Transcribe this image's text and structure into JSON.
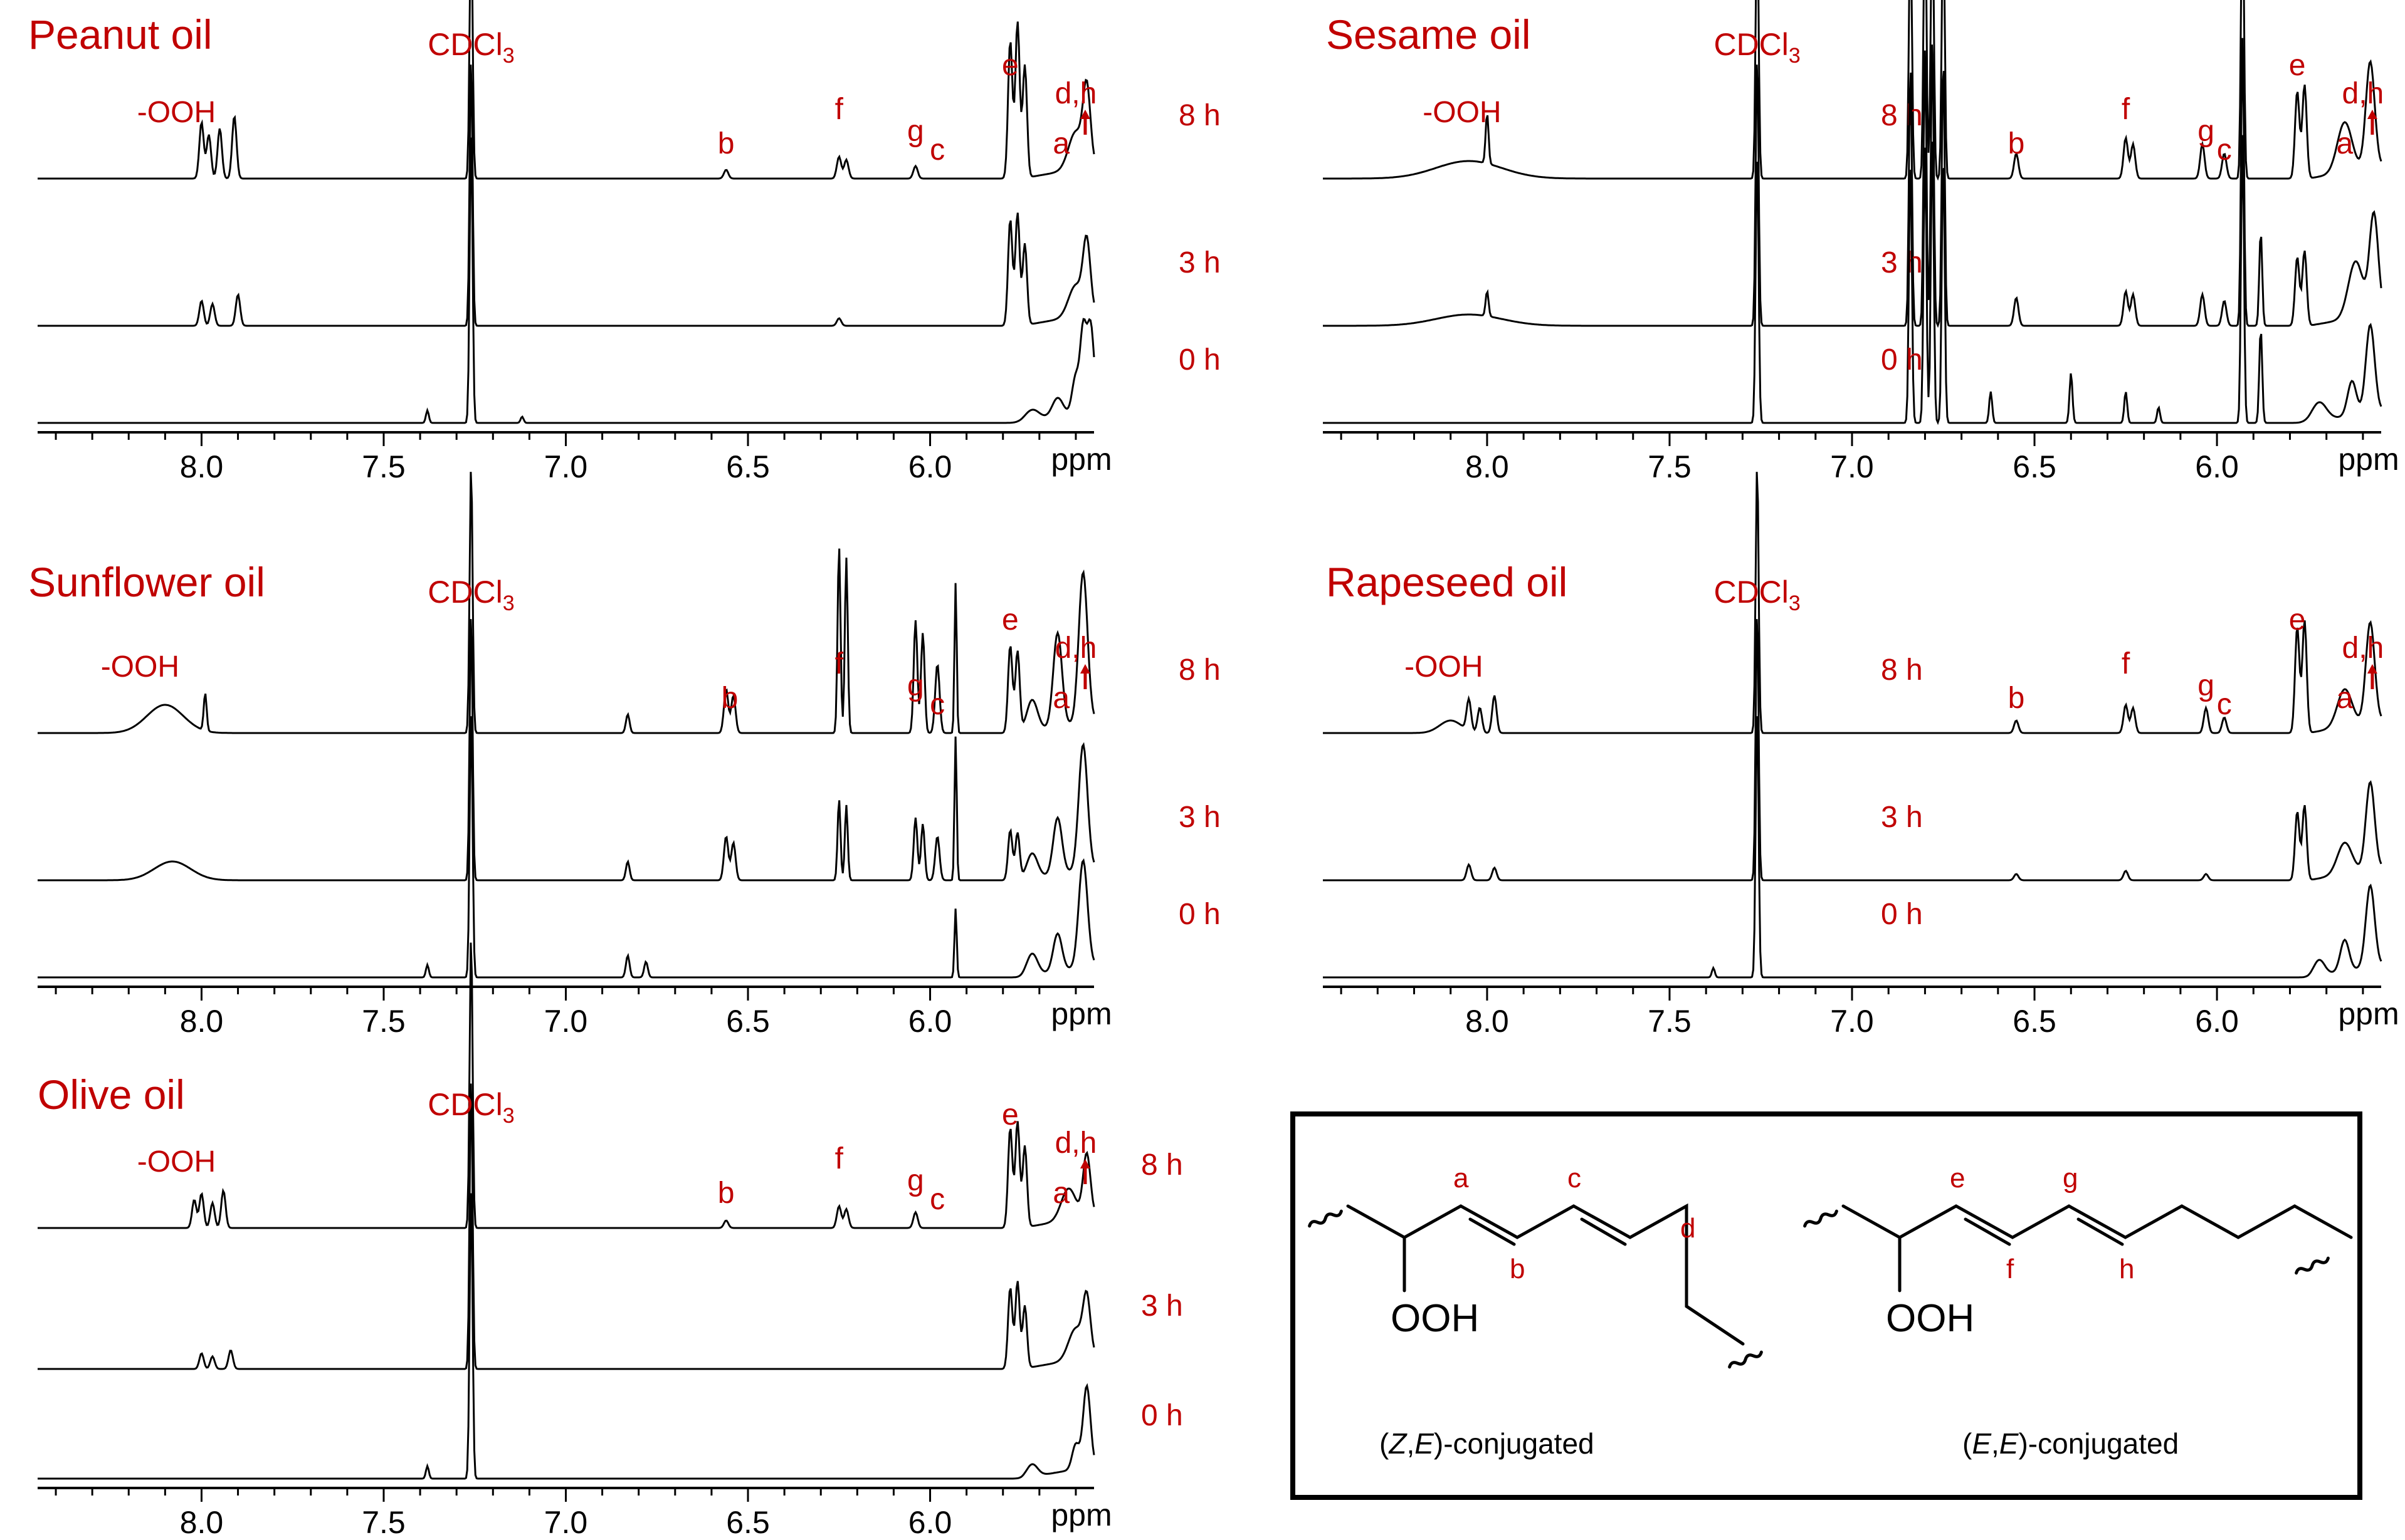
{
  "figure": {
    "colors": {
      "label": "#c00000",
      "trace": "#000000",
      "frame": "#000000"
    },
    "times": [
      "8 h",
      "3 h",
      "0 h"
    ],
    "axis_unit": "ppm",
    "solvent": "CDCl",
    "solvent_subscript": "3",
    "hydroperoxide_label": "-OOH"
  },
  "chart_data": [
    {
      "type": "line",
      "title": "Peanut oil",
      "xlabel": "ppm",
      "xlim": [
        8.45,
        5.55
      ],
      "x_reversed": true,
      "ticks": [
        "8.0",
        "7.5",
        "7.0",
        "6.5",
        "6.0"
      ],
      "tick_values": [
        8.0,
        7.5,
        7.0,
        6.5,
        6.0
      ],
      "series": [
        {
          "name": "8 h",
          "baseline_ppm_range": [
            8.45,
            5.55
          ],
          "solvent_peak_ppm": 7.26
        },
        {
          "name": "3 h",
          "baseline_ppm_range": [
            8.45,
            5.55
          ],
          "solvent_peak_ppm": 7.26
        },
        {
          "name": "0 h",
          "baseline_ppm_range": [
            8.45,
            5.55
          ],
          "solvent_peak_ppm": 7.26
        }
      ],
      "peak_labels": [
        {
          "text": "-OOH",
          "ppm": 8.0
        },
        {
          "text": "b",
          "ppm": 6.56
        },
        {
          "text": "f",
          "ppm": 6.25
        },
        {
          "text": "g",
          "ppm": 6.04
        },
        {
          "text": "c",
          "ppm": 5.98
        },
        {
          "text": "e",
          "ppm": 5.78
        },
        {
          "text": "a",
          "ppm": 5.64
        },
        {
          "text": "d,h",
          "ppm": 5.6
        }
      ]
    },
    {
      "type": "line",
      "title": "Sesame oil",
      "xlabel": "ppm",
      "xlim": [
        8.45,
        5.55
      ],
      "x_reversed": true,
      "ticks": [
        "8.0",
        "7.5",
        "7.0",
        "6.5",
        "6.0"
      ],
      "tick_values": [
        8.0,
        7.5,
        7.0,
        6.5,
        6.0
      ],
      "series": [
        {
          "name": "8 h",
          "solvent_peak_ppm": 7.26
        },
        {
          "name": "3 h",
          "solvent_peak_ppm": 7.26
        },
        {
          "name": "0 h",
          "solvent_peak_ppm": 7.26
        }
      ],
      "peak_labels": [
        {
          "text": "-OOH",
          "ppm": 8.0
        },
        {
          "text": "b",
          "ppm": 6.55
        },
        {
          "text": "f",
          "ppm": 6.25
        },
        {
          "text": "g",
          "ppm": 6.03
        },
        {
          "text": "c",
          "ppm": 5.98
        },
        {
          "text": "e",
          "ppm": 5.78
        },
        {
          "text": "a",
          "ppm": 5.65
        },
        {
          "text": "d,h",
          "ppm": 5.6
        }
      ]
    },
    {
      "type": "line",
      "title": "Sunflower oil",
      "xlabel": "ppm",
      "xlim": [
        8.45,
        5.55
      ],
      "x_reversed": true,
      "ticks": [
        "8.0",
        "7.5",
        "7.0",
        "6.5",
        "6.0"
      ],
      "tick_values": [
        8.0,
        7.5,
        7.0,
        6.5,
        6.0
      ],
      "series": [
        {
          "name": "8 h",
          "solvent_peak_ppm": 7.26
        },
        {
          "name": "3 h",
          "solvent_peak_ppm": 7.26
        },
        {
          "name": "0 h",
          "solvent_peak_ppm": 7.26
        }
      ],
      "peak_labels": [
        {
          "text": "-OOH",
          "ppm": 8.1
        },
        {
          "text": "b",
          "ppm": 6.55
        },
        {
          "text": "f",
          "ppm": 6.25
        },
        {
          "text": "g",
          "ppm": 6.04
        },
        {
          "text": "c",
          "ppm": 5.98
        },
        {
          "text": "e",
          "ppm": 5.78
        },
        {
          "text": "a",
          "ppm": 5.64
        },
        {
          "text": "d,h",
          "ppm": 5.6
        }
      ]
    },
    {
      "type": "line",
      "title": "Rapeseed oil",
      "xlabel": "ppm",
      "xlim": [
        8.45,
        5.55
      ],
      "x_reversed": true,
      "ticks": [
        "8.0",
        "7.5",
        "7.0",
        "6.5",
        "6.0"
      ],
      "tick_values": [
        8.0,
        7.5,
        7.0,
        6.5,
        6.0
      ],
      "series": [
        {
          "name": "8 h",
          "solvent_peak_ppm": 7.26
        },
        {
          "name": "3 h",
          "solvent_peak_ppm": 7.26
        },
        {
          "name": "0 h",
          "solvent_peak_ppm": 7.26
        }
      ],
      "peak_labels": [
        {
          "text": "-OOH",
          "ppm": 8.05
        },
        {
          "text": "b",
          "ppm": 6.55
        },
        {
          "text": "f",
          "ppm": 6.25
        },
        {
          "text": "g",
          "ppm": 6.03
        },
        {
          "text": "c",
          "ppm": 5.98
        },
        {
          "text": "e",
          "ppm": 5.78
        },
        {
          "text": "a",
          "ppm": 5.65
        },
        {
          "text": "d,h",
          "ppm": 5.6
        }
      ]
    },
    {
      "type": "line",
      "title": "Olive oil",
      "xlabel": "ppm",
      "xlim": [
        8.45,
        5.55
      ],
      "x_reversed": true,
      "ticks": [
        "8.0",
        "7.5",
        "7.0",
        "6.5",
        "6.0"
      ],
      "tick_values": [
        8.0,
        7.5,
        7.0,
        6.5,
        6.0
      ],
      "series": [
        {
          "name": "8 h",
          "solvent_peak_ppm": 7.26
        },
        {
          "name": "3 h",
          "solvent_peak_ppm": 7.26
        },
        {
          "name": "0 h",
          "solvent_peak_ppm": 7.26
        }
      ],
      "peak_labels": [
        {
          "text": "-OOH",
          "ppm": 8.0
        },
        {
          "text": "b",
          "ppm": 6.56
        },
        {
          "text": "f",
          "ppm": 6.25
        },
        {
          "text": "g",
          "ppm": 6.04
        },
        {
          "text": "c",
          "ppm": 5.98
        },
        {
          "text": "e",
          "ppm": 5.78
        },
        {
          "text": "a",
          "ppm": 5.64
        },
        {
          "text": "d,h",
          "ppm": 5.6
        }
      ]
    }
  ],
  "structures": {
    "left": {
      "caption_prefix": "(",
      "caption_italic_1": "Z",
      "caption_sep": ",",
      "caption_italic_2": "E",
      "caption_suffix": ")-conjugated",
      "group": "OOH",
      "atom_labels": [
        "a",
        "b",
        "c",
        "d"
      ]
    },
    "right": {
      "caption_prefix": "(",
      "caption_italic_1": "E",
      "caption_sep": ",",
      "caption_italic_2": "E",
      "caption_suffix": ")-conjugated",
      "group": "OOH",
      "atom_labels": [
        "e",
        "f",
        "g",
        "h"
      ]
    }
  }
}
